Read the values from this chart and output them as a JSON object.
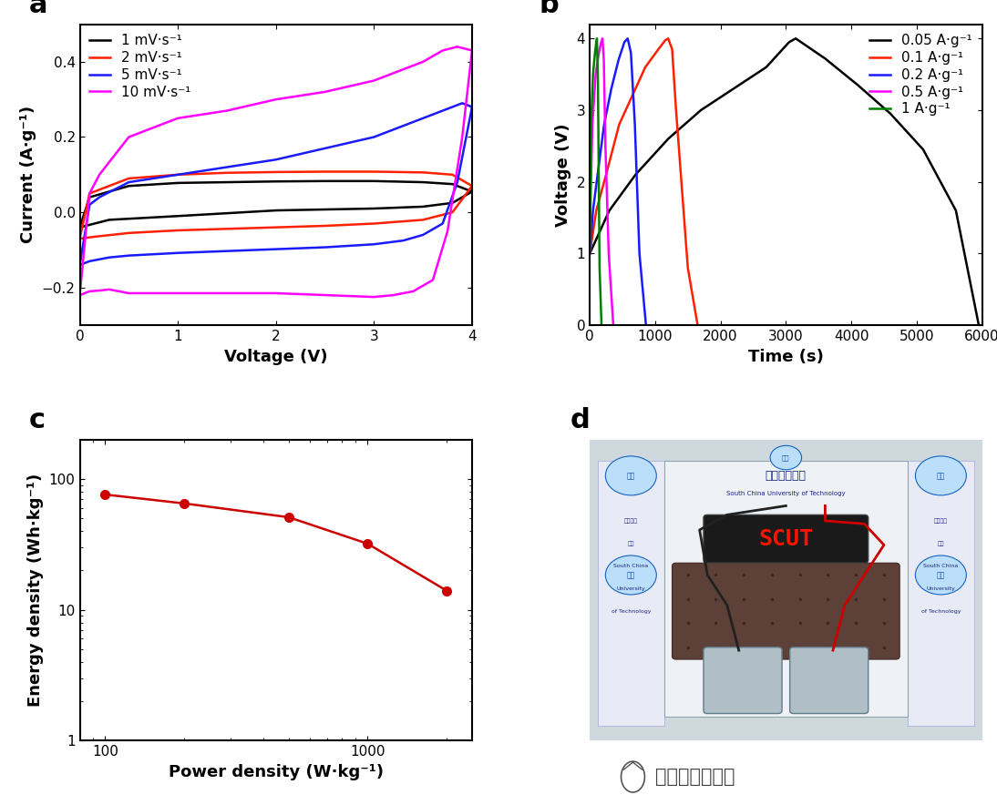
{
  "panel_a": {
    "title": "a",
    "xlabel": "Voltage (V)",
    "ylabel": "Current (A·g⁻¹)",
    "xlim": [
      0,
      4
    ],
    "ylim": [
      -0.3,
      0.5
    ],
    "yticks": [
      -0.2,
      0.0,
      0.2,
      0.4
    ],
    "xticks": [
      0,
      1,
      2,
      3,
      4
    ],
    "curves": [
      {
        "label": "1 mV·s⁻¹",
        "color": "#000000",
        "lw": 1.8,
        "x_fwd": [
          0.0,
          0.3,
          1.0,
          2.0,
          3.0,
          3.5,
          3.8,
          4.0
        ],
        "y_fwd": [
          -0.04,
          -0.02,
          -0.01,
          0.005,
          0.01,
          0.015,
          0.025,
          0.055
        ],
        "x_rev": [
          4.0,
          3.8,
          3.5,
          3.0,
          2.5,
          2.0,
          1.5,
          1.0,
          0.5,
          0.1,
          0.0
        ],
        "y_rev": [
          0.055,
          0.075,
          0.08,
          0.083,
          0.083,
          0.082,
          0.08,
          0.078,
          0.07,
          0.04,
          -0.04
        ]
      },
      {
        "label": "2 mV·s⁻¹",
        "color": "#ff2000",
        "lw": 1.8,
        "x_fwd": [
          0.0,
          0.15,
          0.5,
          1.0,
          1.5,
          2.0,
          2.5,
          3.0,
          3.5,
          3.8,
          4.0
        ],
        "y_fwd": [
          -0.07,
          -0.065,
          -0.055,
          -0.048,
          -0.044,
          -0.04,
          -0.036,
          -0.03,
          -0.02,
          0.0,
          0.07
        ],
        "x_rev": [
          4.0,
          3.8,
          3.5,
          3.0,
          2.5,
          2.0,
          1.5,
          1.0,
          0.5,
          0.1,
          0.0
        ],
        "y_rev": [
          0.07,
          0.1,
          0.106,
          0.108,
          0.108,
          0.107,
          0.105,
          0.1,
          0.09,
          0.05,
          -0.07
        ]
      },
      {
        "label": "5 mV·s⁻¹",
        "color": "#1a1aff",
        "lw": 1.8,
        "x_fwd": [
          0.0,
          0.1,
          0.3,
          0.5,
          1.0,
          1.5,
          2.0,
          2.5,
          3.0,
          3.3,
          3.5,
          3.7,
          3.85,
          4.0
        ],
        "y_fwd": [
          -0.14,
          -0.13,
          -0.12,
          -0.115,
          -0.108,
          -0.103,
          -0.098,
          -0.093,
          -0.085,
          -0.075,
          -0.06,
          -0.03,
          0.08,
          0.28
        ],
        "x_rev": [
          4.0,
          3.9,
          3.7,
          3.5,
          3.3,
          3.0,
          2.5,
          2.0,
          1.5,
          1.0,
          0.5,
          0.2,
          0.1,
          0.0
        ],
        "y_rev": [
          0.28,
          0.29,
          0.27,
          0.25,
          0.23,
          0.2,
          0.17,
          0.14,
          0.12,
          0.1,
          0.08,
          0.04,
          0.02,
          -0.14
        ]
      },
      {
        "label": "10 mV·s⁻¹",
        "color": "#ff00ff",
        "lw": 1.8,
        "x_fwd": [
          0.0,
          0.05,
          0.1,
          0.2,
          0.3,
          0.5,
          1.0,
          1.5,
          2.0,
          2.5,
          3.0,
          3.2,
          3.4,
          3.6,
          3.75,
          3.9,
          4.0
        ],
        "y_fwd": [
          -0.22,
          -0.215,
          -0.21,
          -0.208,
          -0.205,
          -0.215,
          -0.215,
          -0.215,
          -0.215,
          -0.22,
          -0.225,
          -0.22,
          -0.21,
          -0.18,
          -0.05,
          0.2,
          0.43
        ],
        "x_rev": [
          4.0,
          3.85,
          3.7,
          3.5,
          3.0,
          2.5,
          2.0,
          1.5,
          1.0,
          0.5,
          0.2,
          0.1,
          0.0
        ],
        "y_rev": [
          0.43,
          0.44,
          0.43,
          0.4,
          0.35,
          0.32,
          0.3,
          0.27,
          0.25,
          0.2,
          0.1,
          0.05,
          -0.22
        ]
      }
    ]
  },
  "panel_b": {
    "title": "b",
    "xlabel": "Time (s)",
    "ylabel": "Voltage (V)",
    "xlim": [
      0,
      6000
    ],
    "ylim": [
      0,
      4.2
    ],
    "yticks": [
      0,
      1,
      2,
      3,
      4
    ],
    "xticks": [
      0,
      1000,
      2000,
      3000,
      4000,
      5000,
      6000
    ],
    "curves": [
      {
        "label": "0.05 A·g⁻¹",
        "color": "#000000",
        "lw": 1.8,
        "x": [
          0,
          300,
          700,
          1200,
          1700,
          2200,
          2700,
          3050,
          3150,
          3600,
          4100,
          4600,
          5100,
          5600,
          5950
        ],
        "y": [
          1.0,
          1.6,
          2.1,
          2.6,
          3.0,
          3.3,
          3.6,
          3.95,
          4.0,
          3.72,
          3.35,
          2.95,
          2.45,
          1.6,
          0.0
        ]
      },
      {
        "label": "0.1 A·g⁻¹",
        "color": "#ff2000",
        "lw": 1.8,
        "x": [
          0,
          100,
          250,
          450,
          650,
          850,
          1050,
          1150,
          1200,
          1260,
          1320,
          1500,
          1650
        ],
        "y": [
          1.0,
          1.6,
          2.1,
          2.8,
          3.2,
          3.6,
          3.85,
          3.97,
          4.0,
          3.85,
          3.0,
          0.8,
          0.0
        ]
      },
      {
        "label": "0.2 A·g⁻¹",
        "color": "#1a1aff",
        "lw": 1.8,
        "x": [
          0,
          50,
          120,
          220,
          330,
          440,
          530,
          580,
          630,
          690,
          760,
          860
        ],
        "y": [
          1.0,
          1.6,
          2.1,
          2.8,
          3.3,
          3.7,
          3.95,
          4.0,
          3.8,
          2.8,
          1.0,
          0.0
        ]
      },
      {
        "label": "0.5 A·g⁻¹",
        "color": "#ff00ff",
        "lw": 1.8,
        "x": [
          0,
          15,
          40,
          90,
          140,
          175,
          195,
          215,
          240,
          290,
          360
        ],
        "y": [
          1.0,
          1.8,
          2.8,
          3.5,
          3.8,
          3.95,
          4.0,
          3.7,
          2.5,
          1.0,
          0.0
        ]
      },
      {
        "label": "1 A·g⁻¹",
        "color": "#008000",
        "lw": 1.8,
        "x": [
          0,
          8,
          20,
          50,
          80,
          100,
          110,
          125,
          150,
          180
        ],
        "y": [
          1.0,
          1.8,
          2.8,
          3.5,
          3.8,
          3.95,
          4.0,
          3.4,
          0.8,
          0.0
        ]
      }
    ]
  },
  "panel_c": {
    "title": "c",
    "xlabel": "Power density (W·kg⁻¹)",
    "ylabel": "Energy density (Wh·kg⁻¹)",
    "xlim": [
      80,
      2500
    ],
    "ylim": [
      1,
      200
    ],
    "color": "#cc0000",
    "lw": 1.8,
    "marker": "o",
    "markersize": 7,
    "x": [
      100,
      200,
      500,
      1000,
      2000
    ],
    "y": [
      76,
      65,
      51,
      32,
      14
    ]
  },
  "bg_color": "#ffffff",
  "panel_labels_fontsize": 22,
  "axis_label_fontsize": 13,
  "tick_fontsize": 11,
  "legend_fontsize": 11,
  "watermark": "材料分析与应用"
}
